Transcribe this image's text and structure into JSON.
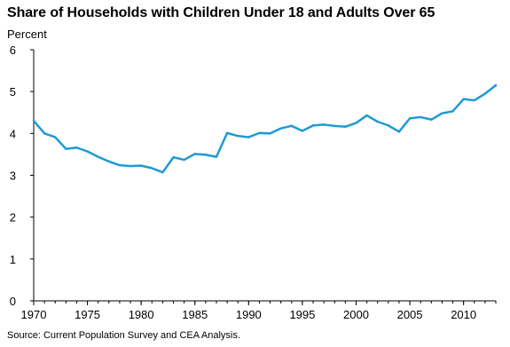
{
  "chart_data": {
    "type": "line",
    "title": "Share of Households with Children Under 18 and Adults Over 65",
    "ylabel": "Percent",
    "xlabel": "",
    "source": "Source: Current Population Survey and CEA Analysis.",
    "xlim": [
      1970,
      2013
    ],
    "ylim": [
      0,
      6
    ],
    "x_ticks": [
      1970,
      1975,
      1980,
      1985,
      1990,
      1995,
      2000,
      2005,
      2010
    ],
    "y_ticks": [
      0,
      1,
      2,
      3,
      4,
      5,
      6
    ],
    "grid": false,
    "legend": "none",
    "line_color": "#1f9ad6",
    "series": [
      {
        "x": [
          1970,
          1971,
          1972,
          1973,
          1974,
          1975,
          1976,
          1977,
          1978,
          1979,
          1980,
          1981,
          1982,
          1983,
          1984,
          1985,
          1986,
          1987,
          1988,
          1989,
          1990,
          1991,
          1992,
          1993,
          1994,
          1995,
          1996,
          1997,
          1998,
          1999,
          2000,
          2001,
          2002,
          2003,
          2004,
          2005,
          2006,
          2007,
          2008,
          2009,
          2010,
          2011,
          2012,
          2013
        ],
        "values": [
          4.3,
          4.0,
          3.91,
          3.63,
          3.66,
          3.57,
          3.44,
          3.33,
          3.24,
          3.22,
          3.23,
          3.17,
          3.07,
          3.43,
          3.37,
          3.51,
          3.49,
          3.44,
          4.01,
          3.94,
          3.91,
          4.01,
          4.0,
          4.12,
          4.18,
          4.06,
          4.19,
          4.21,
          4.18,
          4.16,
          4.25,
          4.43,
          4.28,
          4.19,
          4.04,
          4.36,
          4.39,
          4.33,
          4.48,
          4.53,
          4.82,
          4.79,
          4.95,
          5.15
        ]
      }
    ]
  }
}
